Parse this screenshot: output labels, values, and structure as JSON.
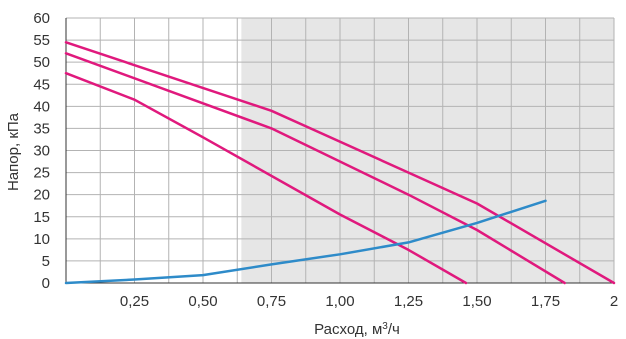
{
  "chart_data": {
    "type": "line",
    "xlabel_main": "Расход, м",
    "xlabel_sup": "3",
    "xlabel_tail": "/ч",
    "ylabel": "Напор, кПа",
    "xlim": [
      0,
      2
    ],
    "ylim": [
      0,
      60
    ],
    "x_ticks": [
      {
        "value": 0.25,
        "label": "0,25"
      },
      {
        "value": 0.5,
        "label": "0,50"
      },
      {
        "value": 0.75,
        "label": "0,75"
      },
      {
        "value": 1.0,
        "label": "1,00"
      },
      {
        "value": 1.25,
        "label": "1,25"
      },
      {
        "value": 1.5,
        "label": "1,50"
      },
      {
        "value": 1.75,
        "label": "1,75"
      },
      {
        "value": 2.0,
        "label": "2"
      }
    ],
    "y_ticks": [
      {
        "value": 0,
        "label": "0"
      },
      {
        "value": 5,
        "label": "5"
      },
      {
        "value": 10,
        "label": "10"
      },
      {
        "value": 15,
        "label": "15"
      },
      {
        "value": 20,
        "label": "20"
      },
      {
        "value": 25,
        "label": "25"
      },
      {
        "value": 30,
        "label": "30"
      },
      {
        "value": 35,
        "label": "35"
      },
      {
        "value": 40,
        "label": "40"
      },
      {
        "value": 45,
        "label": "45"
      },
      {
        "value": 50,
        "label": "50"
      },
      {
        "value": 55,
        "label": "55"
      },
      {
        "value": 60,
        "label": "60"
      }
    ],
    "x_grid_step": 0.125,
    "y_grid_step": 5,
    "shaded_region": {
      "x_from": 0.64,
      "x_to": 2.0,
      "color": "#e6e6e6"
    },
    "colors": {
      "pump": "#e0197d",
      "system": "#2e8bc9",
      "grid": "#b3b3b3",
      "axis": "#333333"
    },
    "series": [
      {
        "role": "pump",
        "points": [
          [
            0,
            54.5
          ],
          [
            0.75,
            39
          ],
          [
            1.25,
            25
          ],
          [
            1.5,
            18
          ],
          [
            2.0,
            0
          ]
        ]
      },
      {
        "role": "pump",
        "points": [
          [
            0,
            52
          ],
          [
            0.75,
            35
          ],
          [
            1.25,
            20
          ],
          [
            1.5,
            12
          ],
          [
            1.82,
            0
          ]
        ]
      },
      {
        "role": "pump",
        "points": [
          [
            0,
            47.5
          ],
          [
            0.25,
            41.5
          ],
          [
            0.5,
            33
          ],
          [
            1.0,
            15.5
          ],
          [
            1.25,
            7.5
          ],
          [
            1.46,
            0
          ]
        ]
      },
      {
        "role": "system",
        "points": [
          [
            0,
            0
          ],
          [
            0.25,
            0.8
          ],
          [
            0.5,
            1.8
          ],
          [
            0.75,
            4.2
          ],
          [
            1.0,
            6.5
          ],
          [
            1.25,
            9.2
          ],
          [
            1.5,
            13.6
          ],
          [
            1.75,
            18.6
          ]
        ]
      }
    ]
  }
}
